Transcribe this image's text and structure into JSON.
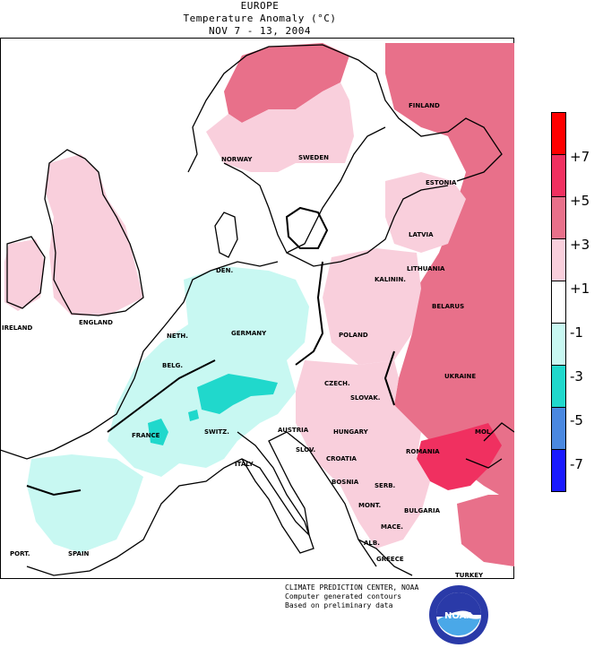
{
  "header": {
    "region": "EUROPE",
    "subtitle": "Temperature Anomaly (°C)",
    "period": "NOV 7 - 13, 2004"
  },
  "colors": {
    "plus7": "#ff0000",
    "plus5": "#f03060",
    "plus3": "#e8708a",
    "plus1": "#f9cfdc",
    "neutral": "#ffffff",
    "minus1": "#c8f8f2",
    "minus3": "#20d8cc",
    "minus5": "#4a88e0",
    "minus7": "#1a1aff"
  },
  "legend": {
    "labels": [
      "+7",
      "+5",
      "+3",
      "+1",
      "-1",
      "-3",
      "-5",
      "-7"
    ]
  },
  "countries": [
    {
      "name": "FINLAND"
    },
    {
      "name": "NORWAY"
    },
    {
      "name": "SWEDEN"
    },
    {
      "name": "ESTONIA"
    },
    {
      "name": "LATVIA"
    },
    {
      "name": "LITHUANIA"
    },
    {
      "name": "KALININ."
    },
    {
      "name": "DEN."
    },
    {
      "name": "BELARUS"
    },
    {
      "name": "ENGLAND"
    },
    {
      "name": "IRELAND"
    },
    {
      "name": "NETH."
    },
    {
      "name": "BELG."
    },
    {
      "name": "GERMANY"
    },
    {
      "name": "POLAND"
    },
    {
      "name": "UKRAINE"
    },
    {
      "name": "CZECH."
    },
    {
      "name": "SLOVAK."
    },
    {
      "name": "FRANCE"
    },
    {
      "name": "SWITZ."
    },
    {
      "name": "AUSTRIA"
    },
    {
      "name": "HUNGARY"
    },
    {
      "name": "MOL."
    },
    {
      "name": "ROMANIA"
    },
    {
      "name": "SLOV."
    },
    {
      "name": "CROATIA"
    },
    {
      "name": "BOSNIA"
    },
    {
      "name": "SERB."
    },
    {
      "name": "ITALY"
    },
    {
      "name": "MONT."
    },
    {
      "name": "BULGARIA"
    },
    {
      "name": "MACE."
    },
    {
      "name": "ALB."
    },
    {
      "name": "GREECE"
    },
    {
      "name": "TURKEY"
    },
    {
      "name": "SPAIN"
    },
    {
      "name": "PORT."
    }
  ],
  "footer": {
    "line1": "CLIMATE PREDICTION CENTER, NOAA",
    "line2": "Computer generated contours",
    "line3": "Based on preliminary data"
  },
  "logo": {
    "text": "NOAA"
  }
}
